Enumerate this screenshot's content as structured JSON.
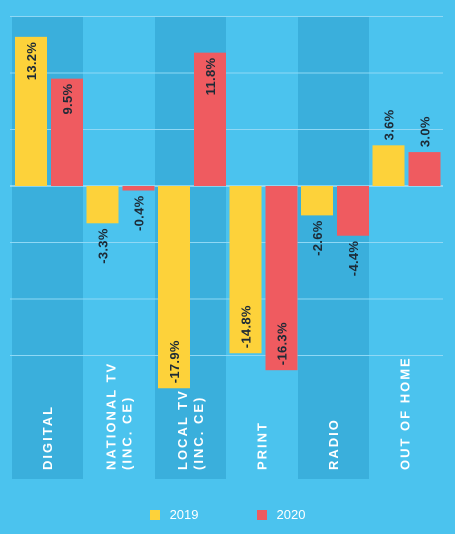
{
  "colors": {
    "background": "#4BC3EE",
    "band": "#3AAFDC",
    "gridline": "#8FD8F5",
    "series_2019": "#FDD23A",
    "series_2020": "#EF5B60",
    "label_text": "#1D2A36",
    "category_text": "#FFFFFF"
  },
  "legend": {
    "item_2019": "2019",
    "item_2020": "2020"
  },
  "chart_data": {
    "type": "bar",
    "categories": [
      "DIGITAL",
      "NATIONAL TV\n(INC. CE)",
      "LOCAL TV\n(INC. CE)",
      "PRINT",
      "RADIO",
      "OUT OF HOME"
    ],
    "series": [
      {
        "name": "2019",
        "values": [
          13.2,
          -3.3,
          -17.9,
          -14.8,
          -2.6,
          3.6
        ],
        "labels": [
          "13.2%",
          "-3.3%",
          "-17.9%",
          "-14.8%",
          "-2.6%",
          "3.6%"
        ]
      },
      {
        "name": "2020",
        "values": [
          9.5,
          -0.4,
          11.8,
          -16.3,
          -4.4,
          3.0
        ],
        "labels": [
          "9.5%",
          "-0.4%",
          "11.8%",
          "-16.3%",
          "-4.4%",
          "3.0%"
        ]
      }
    ],
    "ylim": [
      -20,
      15
    ],
    "grid": true,
    "legend_position": "bottom",
    "title": "",
    "xlabel": "",
    "ylabel": ""
  }
}
